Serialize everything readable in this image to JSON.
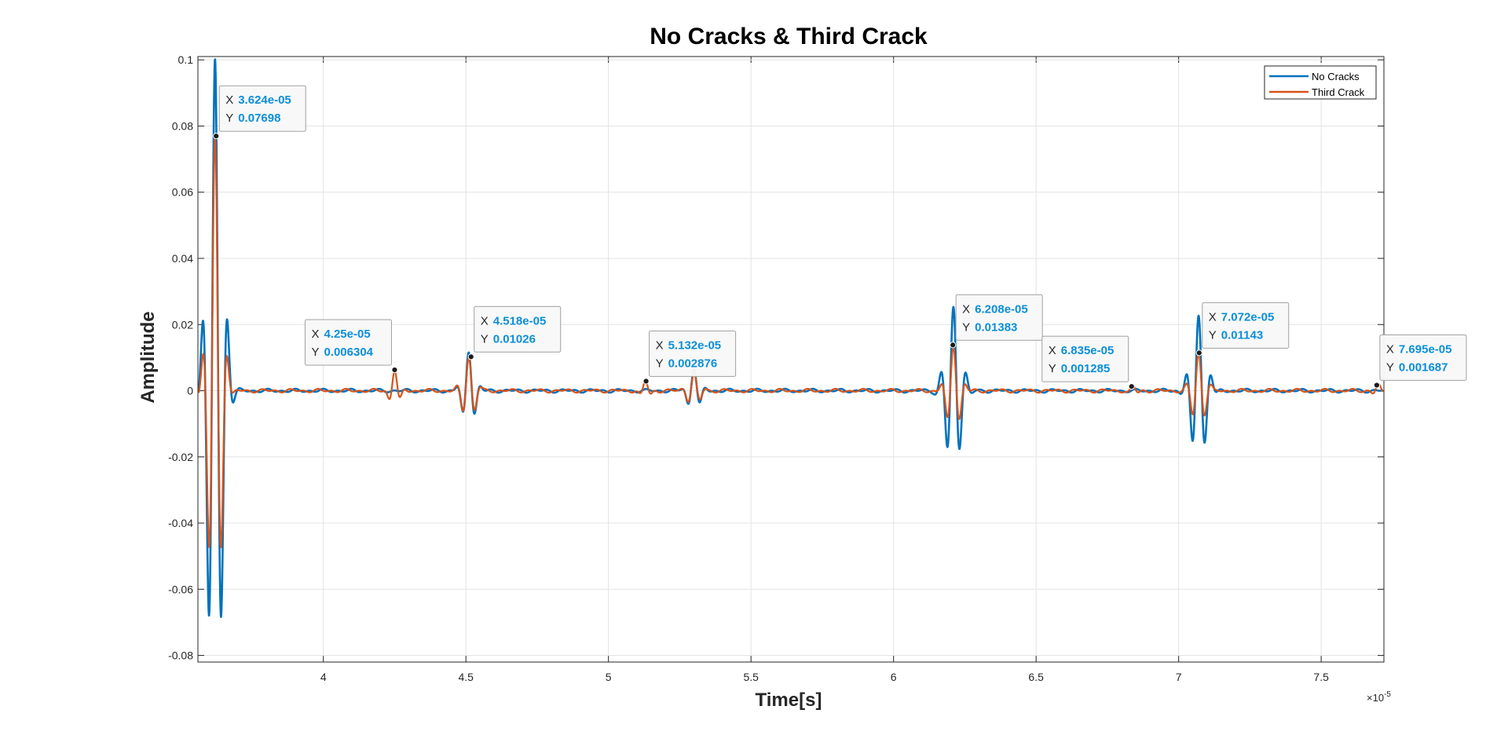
{
  "chart_data": {
    "type": "line",
    "title": "No Cracks & Third Crack",
    "xlabel": "Time[s]",
    "ylabel": "Amplitude",
    "x_exponent_label": "×10",
    "x_exponent_power": "-5",
    "xlim": [
      3.56,
      7.72
    ],
    "ylim": [
      -0.082,
      0.101
    ],
    "grid": true,
    "legend_position": "top-right",
    "x_ticks": [
      4,
      4.5,
      5,
      5.5,
      6,
      6.5,
      7,
      7.5
    ],
    "x_tick_labels": [
      "4",
      "4.5",
      "5",
      "5.5",
      "6",
      "6.5",
      "7",
      "7.5"
    ],
    "y_ticks": [
      0.1,
      0.08,
      0.06,
      0.04,
      0.02,
      0,
      -0.02,
      -0.04,
      -0.06,
      -0.08
    ],
    "y_tick_labels": [
      "0.1",
      "0.08",
      "0.06",
      "0.04",
      "0.02",
      "0",
      "-0.02",
      "-0.04",
      "-0.06",
      "-0.08"
    ],
    "series": [
      {
        "name": "No Cracks",
        "color": "#0072bd",
        "bursts": [
          {
            "t": 3.62,
            "amp": 0.1,
            "f": 22,
            "d": 0.025
          },
          {
            "t": 4.51,
            "amp": 0.012,
            "f": 22,
            "d": 0.02
          },
          {
            "t": 5.3,
            "amp": 0.007,
            "f": 22,
            "d": 0.02
          },
          {
            "t": 6.21,
            "amp": 0.025,
            "f": 22,
            "d": 0.025
          },
          {
            "t": 7.07,
            "amp": 0.023,
            "f": 22,
            "d": 0.025
          }
        ]
      },
      {
        "name": "Third Crack",
        "color": "#d95319",
        "bursts": [
          {
            "t": 3.62,
            "amp": 0.077,
            "f": 22,
            "d": 0.022
          },
          {
            "t": 4.25,
            "amp": 0.0063,
            "f": 22,
            "d": 0.015
          },
          {
            "t": 4.51,
            "amp": 0.0103,
            "f": 22,
            "d": 0.02
          },
          {
            "t": 5.13,
            "amp": 0.0029,
            "f": 22,
            "d": 0.015
          },
          {
            "t": 5.3,
            "amp": 0.005,
            "f": 22,
            "d": 0.02
          },
          {
            "t": 6.21,
            "amp": 0.0138,
            "f": 22,
            "d": 0.022
          },
          {
            "t": 6.84,
            "amp": 0.0013,
            "f": 22,
            "d": 0.015
          },
          {
            "t": 7.07,
            "amp": 0.0114,
            "f": 22,
            "d": 0.022
          },
          {
            "t": 7.7,
            "amp": 0.0017,
            "f": 22,
            "d": 0.015
          }
        ]
      }
    ],
    "datatips": [
      {
        "x": 3.624,
        "y": 0.07698,
        "x_text": "3.624e-05",
        "y_text": "0.07698",
        "box_side": "right-below"
      },
      {
        "x": 4.25,
        "y": 0.006304,
        "x_text": "4.25e-05",
        "y_text": "0.006304",
        "box_side": "left-above"
      },
      {
        "x": 4.518,
        "y": 0.01026,
        "x_text": "4.518e-05",
        "y_text": "0.01026",
        "box_side": "right-above"
      },
      {
        "x": 5.132,
        "y": 0.002876,
        "x_text": "5.132e-05",
        "y_text": "0.002876",
        "box_side": "right-above"
      },
      {
        "x": 6.208,
        "y": 0.01383,
        "x_text": "6.208e-05",
        "y_text": "0.01383",
        "box_side": "right-above"
      },
      {
        "x": 6.835,
        "y": 0.001285,
        "x_text": "6.835e-05",
        "y_text": "0.001285",
        "box_side": "left-above"
      },
      {
        "x": 7.072,
        "y": 0.01143,
        "x_text": "7.072e-05",
        "y_text": "0.01143",
        "box_side": "right-above"
      },
      {
        "x": 7.695,
        "y": 0.001687,
        "x_text": "7.695e-05",
        "y_text": "0.001687",
        "box_side": "right-above"
      }
    ]
  }
}
